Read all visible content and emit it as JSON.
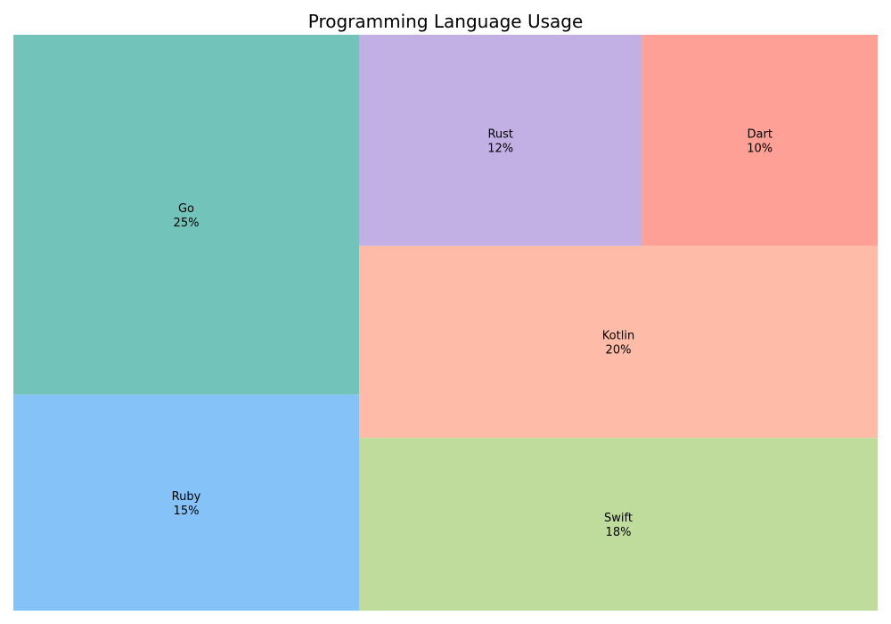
{
  "chart_data": {
    "type": "treemap",
    "title": "Programming Language Usage",
    "items": [
      {
        "label": "Go",
        "value": 25,
        "value_label": "25%",
        "color": "#72c4bb"
      },
      {
        "label": "Ruby",
        "value": 15,
        "value_label": "15%",
        "color": "#85c2f8"
      },
      {
        "label": "Rust",
        "value": 12,
        "value_label": "12%",
        "color": "#c2b0e4"
      },
      {
        "label": "Dart",
        "value": 10,
        "value_label": "10%",
        "color": "#fea096"
      },
      {
        "label": "Kotlin",
        "value": 20,
        "value_label": "20%",
        "color": "#febba7"
      },
      {
        "label": "Swift",
        "value": 18,
        "value_label": "18%",
        "color": "#bfdc9c"
      }
    ]
  }
}
